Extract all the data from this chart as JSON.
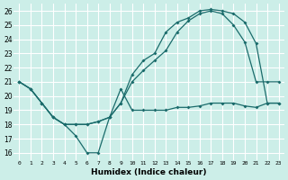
{
  "xlabel": "Humidex (Indice chaleur)",
  "bg_color": "#cceee8",
  "grid_color": "#ffffff",
  "line_color": "#1a6b6b",
  "xlim": [
    -0.5,
    23.5
  ],
  "ylim": [
    15.5,
    26.5
  ],
  "xticks": [
    0,
    1,
    2,
    3,
    4,
    5,
    6,
    7,
    8,
    9,
    10,
    11,
    12,
    13,
    14,
    15,
    16,
    17,
    18,
    19,
    20,
    21,
    22,
    23
  ],
  "yticks": [
    16,
    17,
    18,
    19,
    20,
    21,
    22,
    23,
    24,
    25,
    26
  ],
  "series1_x": [
    0,
    1,
    2,
    3,
    4,
    5,
    6,
    7,
    8,
    9,
    10,
    11,
    12,
    13,
    14,
    15,
    16,
    17,
    18,
    19,
    20,
    21,
    22,
    23
  ],
  "series1_y": [
    21.0,
    20.5,
    19.5,
    18.5,
    18.0,
    17.2,
    16.0,
    16.0,
    18.5,
    20.5,
    19.0,
    19.0,
    19.0,
    19.0,
    19.2,
    19.2,
    19.3,
    19.5,
    19.5,
    19.5,
    19.3,
    19.2,
    19.5,
    19.5
  ],
  "series2_x": [
    0,
    1,
    2,
    3,
    4,
    5,
    6,
    7,
    8,
    9,
    10,
    11,
    12,
    13,
    14,
    15,
    16,
    17,
    18,
    19,
    20,
    21,
    22,
    23
  ],
  "series2_y": [
    21.0,
    20.5,
    19.5,
    18.5,
    18.0,
    18.0,
    18.0,
    18.2,
    18.5,
    19.5,
    21.0,
    21.8,
    22.5,
    23.2,
    24.5,
    25.3,
    25.8,
    26.0,
    25.8,
    25.0,
    23.8,
    21.0,
    21.0,
    21.0
  ],
  "series3_x": [
    0,
    1,
    2,
    3,
    4,
    5,
    6,
    7,
    8,
    9,
    10,
    11,
    12,
    13,
    14,
    15,
    16,
    17,
    18,
    19,
    20,
    21,
    22,
    23
  ],
  "series3_y": [
    21.0,
    20.5,
    19.5,
    18.5,
    18.0,
    18.0,
    18.0,
    18.2,
    18.5,
    19.5,
    21.5,
    22.5,
    23.0,
    24.5,
    25.2,
    25.5,
    26.0,
    26.1,
    26.0,
    25.8,
    25.2,
    23.7,
    19.5,
    19.5
  ]
}
